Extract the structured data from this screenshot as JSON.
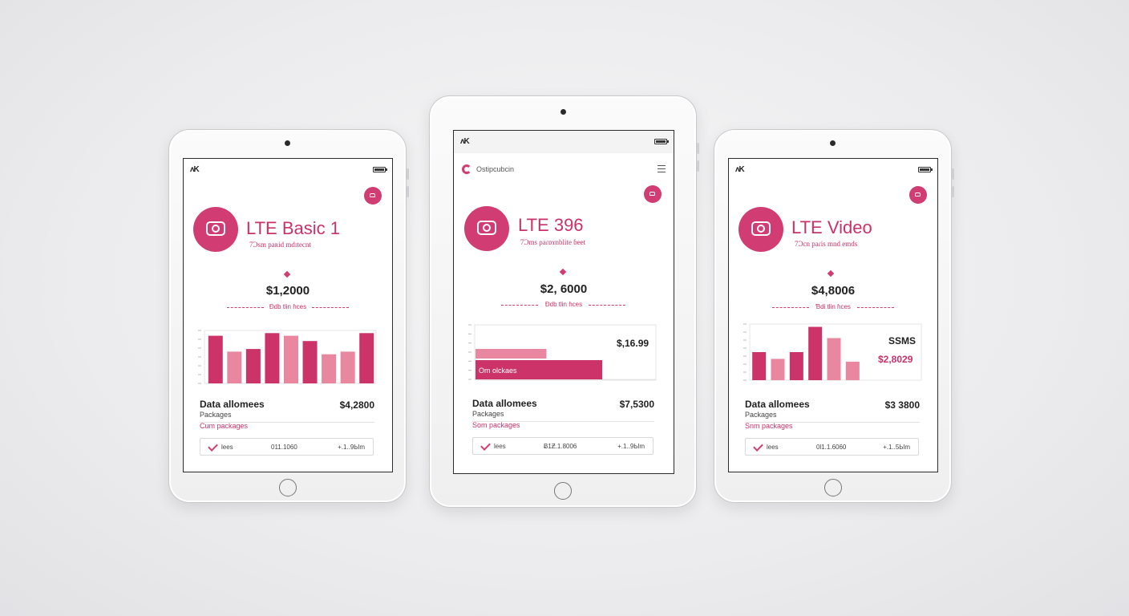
{
  "tablets": [
    {
      "plan_title": "LTE Basic 1",
      "plan_subtitle": "7Ͻsm paʀid mdɪtecnt",
      "price": "$1,2000",
      "divider_text": "Ɖdb tlin ɦces",
      "data_label": "Data allomees",
      "data_value": "$4,2800",
      "packages_label": "Packages",
      "packages_sub": "Cum packages",
      "footer": {
        "a": "Ɩees",
        "b": "011.1060",
        "c": "+.1..9Ьlm"
      }
    },
    {
      "app_name": "Ostipcubcin",
      "plan_title": "LTE 396",
      "plan_subtitle": "7Ͻms ρaɾɒɤnblite ɓeet",
      "price": "$2, 6000",
      "divider_text": "Ɖdb tlin ɦces",
      "bar_top_value": "$,16.99",
      "bar_bottom_label": "Om olckaes",
      "data_label": "Data allomees",
      "data_value": "$7,5300",
      "packages_label": "Packages",
      "packages_sub": "Som packages",
      "footer": {
        "a": "Ɩees",
        "b": "Ƀ1Ƶ.1.8006",
        "c": "+.1..9Ьlm"
      }
    },
    {
      "plan_title": "LTE Video",
      "plan_subtitle": "7Ͻcn paɾis mnd emds",
      "price": "$4,8006",
      "divider_text": "Ɓdi tlin ɦces",
      "sms_label": "SSMS",
      "sms_value": "$2,8029",
      "data_label": "Data allomees",
      "data_value": "$3 3800",
      "packages_label": "Packages",
      "packages_sub": "Snm packages",
      "footer": {
        "a": "Ɩees",
        "b": "0Ɩ1.1.6060",
        "c": "+.1..5Ьlm"
      }
    }
  ],
  "chart_data": [
    {
      "type": "bar",
      "categories": [
        "",
        "",
        "",
        "",
        "",
        "",
        "",
        "",
        ""
      ],
      "values": [
        0.9,
        0.6,
        0.65,
        0.95,
        0.9,
        0.8,
        0.55,
        0.6,
        0.95
      ],
      "colors": [
        "#cc3368",
        "#e8879f",
        "#cc3368",
        "#cc3368",
        "#e8879f",
        "#cc3368",
        "#e8879f",
        "#e8879f",
        "#cc3368"
      ],
      "ylim": [
        0,
        1
      ]
    },
    {
      "type": "bar",
      "orientation": "horizontal",
      "values": [
        0.56,
        1.0
      ],
      "colors": [
        "#e8879f",
        "#cc3368"
      ],
      "ylim": [
        0,
        1
      ]
    },
    {
      "type": "bar",
      "categories": [
        "",
        "",
        "",
        "",
        "",
        ""
      ],
      "values": [
        0.5,
        0.38,
        0.5,
        0.95,
        0.75,
        0.33
      ],
      "colors": [
        "#cc3368",
        "#e8879f",
        "#cc3368",
        "#cc3368",
        "#e8879f",
        "#e8879f"
      ],
      "ylim": [
        0,
        1
      ]
    }
  ]
}
